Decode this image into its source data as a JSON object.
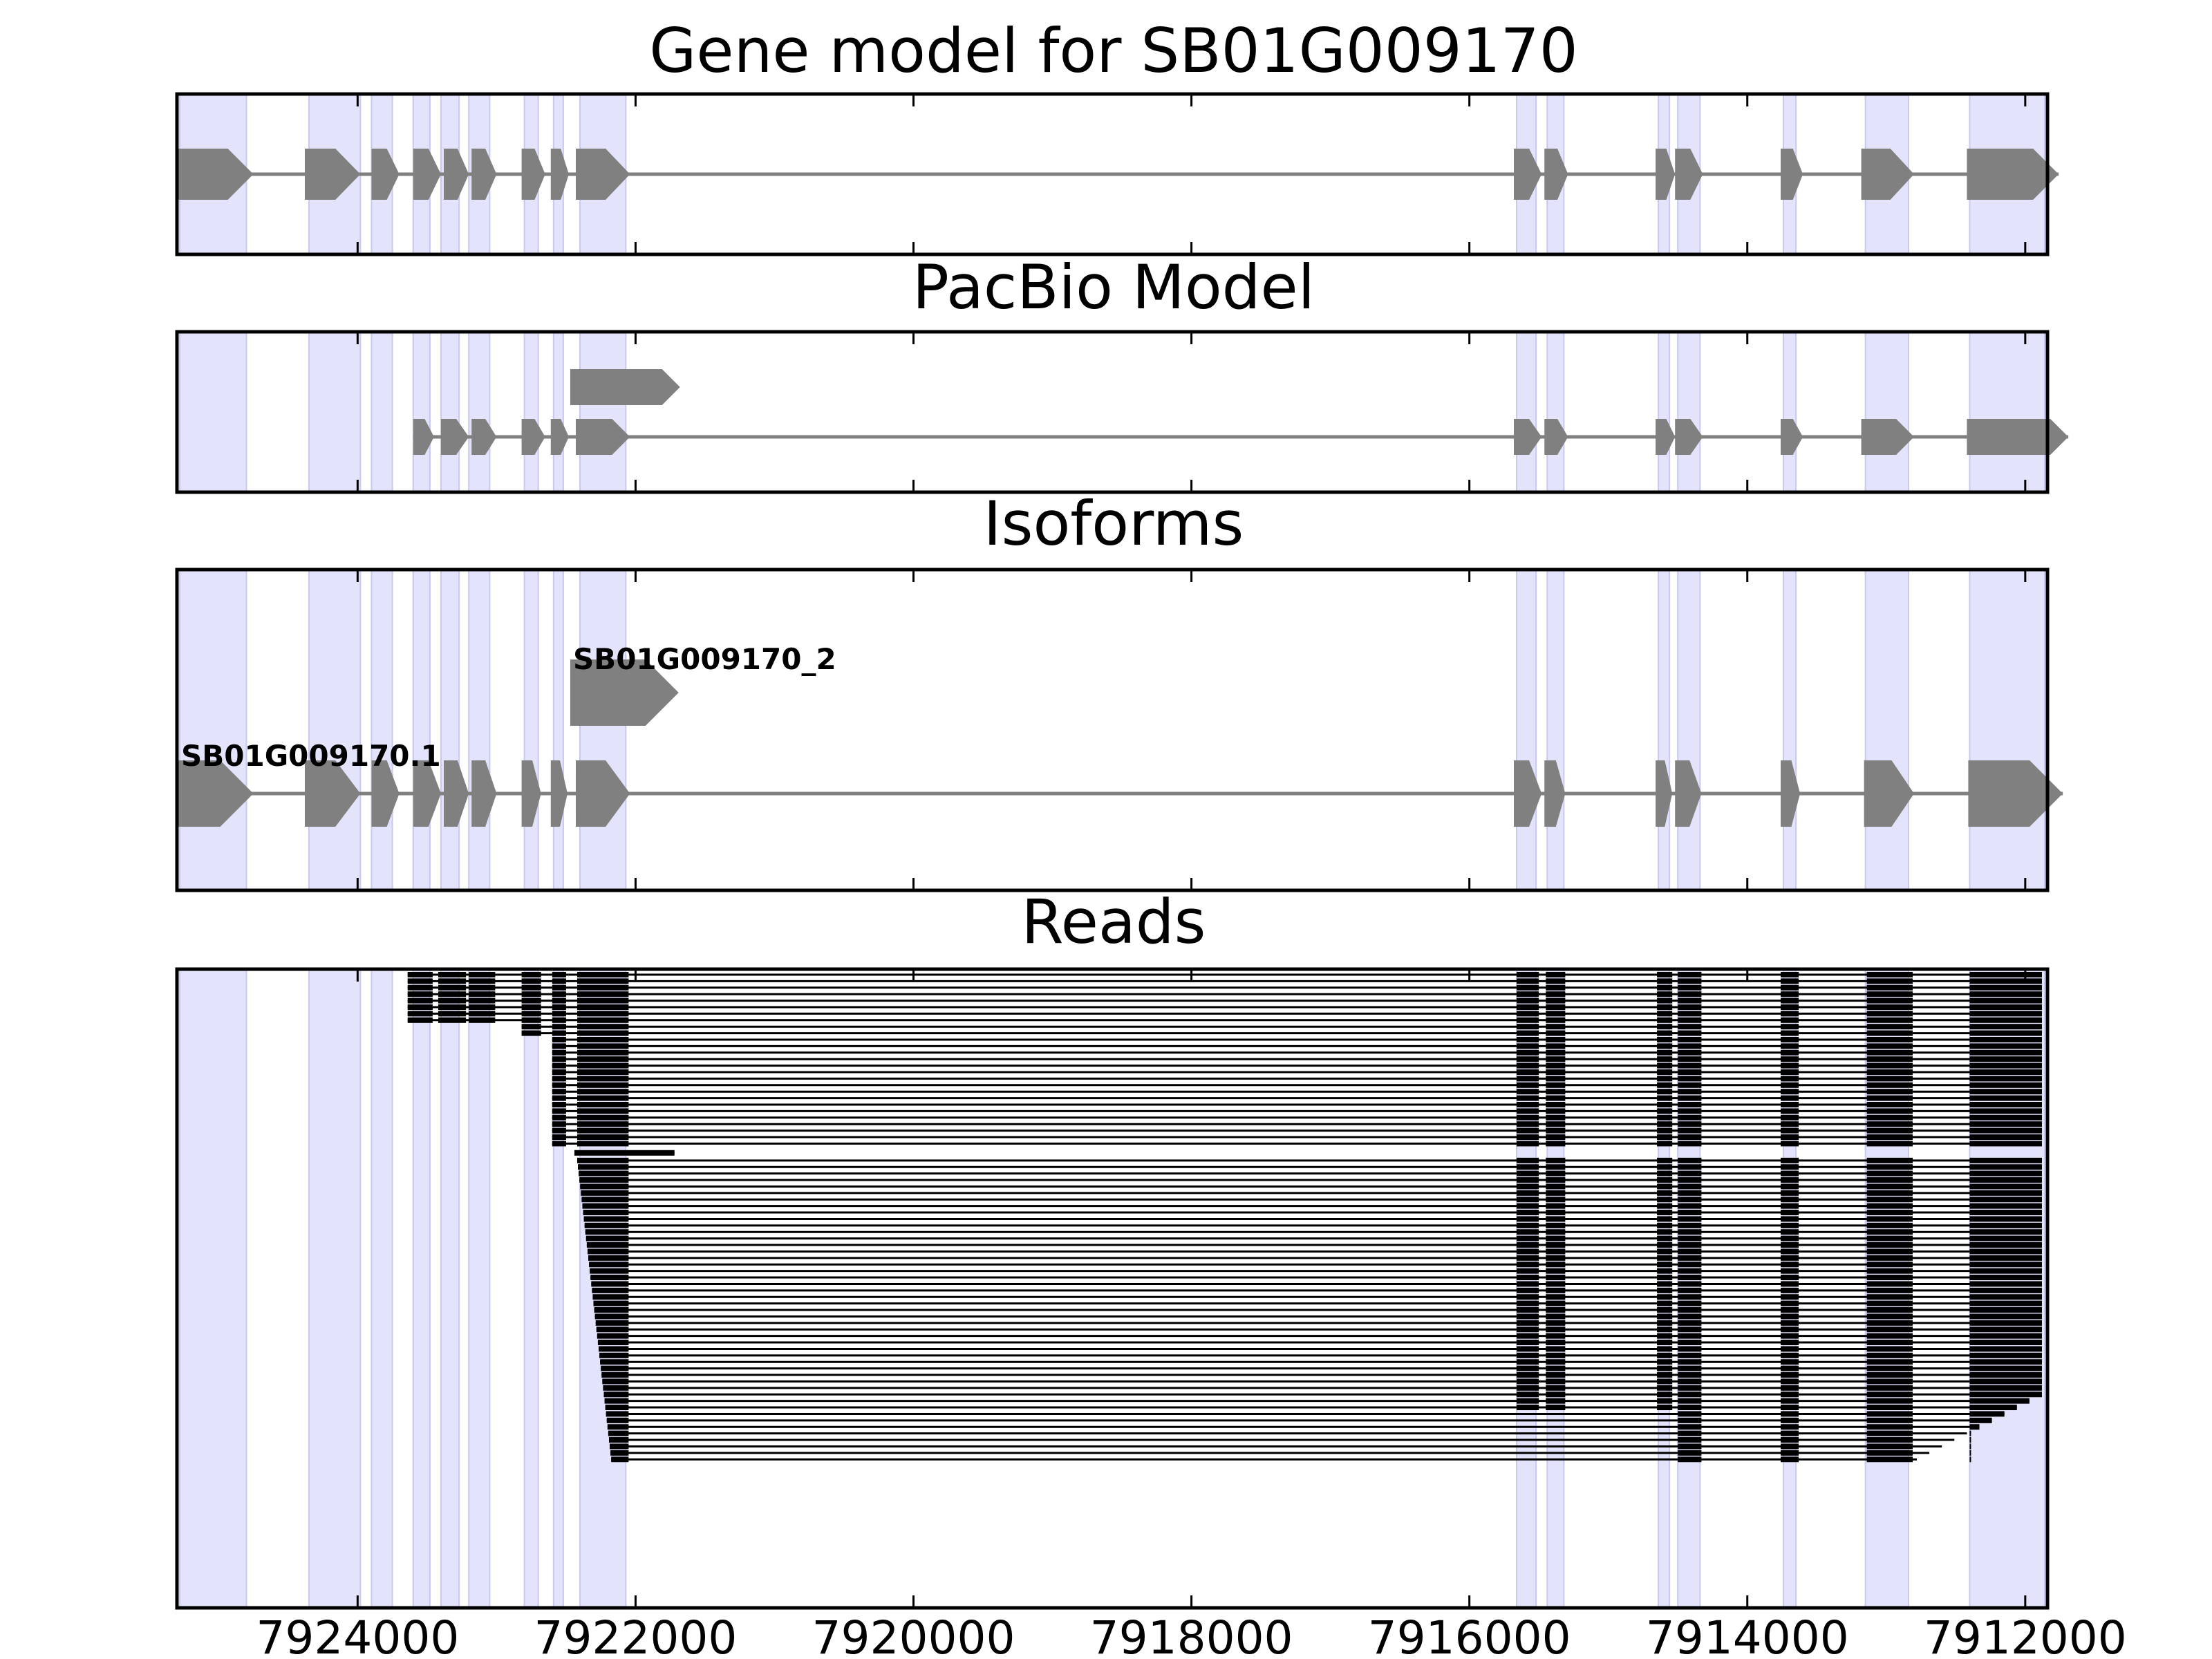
{
  "colors": {
    "exon_shade": "#e3e3fb",
    "exon_shade_edge": "#c9c9f0",
    "feature": "#808080",
    "read": "#000000",
    "frame": "#000000"
  },
  "panels": [
    {
      "id": "gene_model",
      "title": "Gene model for SB01G009170"
    },
    {
      "id": "pacbio",
      "title": "PacBio Model"
    },
    {
      "id": "isoforms",
      "title": "Isoforms"
    },
    {
      "id": "reads",
      "title": "Reads"
    }
  ],
  "chart_data": {
    "type": "gene_model_track",
    "xlim": [
      7925300,
      7911840
    ],
    "x_reversed": true,
    "x_ticks": [
      7924000,
      7922000,
      7920000,
      7918000,
      7916000,
      7914000,
      7912000
    ],
    "x_tick_labels": [
      "7924000",
      "7922000",
      "7920000",
      "7918000",
      "7916000",
      "7914000",
      "7912000"
    ],
    "exon_regions": [
      [
        7925280,
        7924800
      ],
      [
        7924350,
        7923980
      ],
      [
        7923900,
        7923750
      ],
      [
        7923600,
        7923480
      ],
      [
        7923400,
        7923270
      ],
      [
        7923200,
        7923050
      ],
      [
        7922800,
        7922700
      ],
      [
        7922590,
        7922520
      ],
      [
        7922400,
        7922070
      ],
      [
        7915660,
        7915520
      ],
      [
        7915440,
        7915320
      ],
      [
        7914640,
        7914560
      ],
      [
        7914500,
        7914340
      ],
      [
        7913740,
        7913650
      ],
      [
        7913150,
        7912840
      ],
      [
        7912400,
        7911860
      ]
    ],
    "gene_model": {
      "exons": [
        [
          7925300,
          7924750
        ],
        [
          7924380,
          7923980
        ],
        [
          7923900,
          7923700
        ],
        [
          7923600,
          7923400
        ],
        [
          7923380,
          7923200
        ],
        [
          7923180,
          7923000
        ],
        [
          7922820,
          7922650
        ],
        [
          7922610,
          7922480
        ],
        [
          7922430,
          7922040
        ],
        [
          7915680,
          7915480
        ],
        [
          7915460,
          7915290
        ],
        [
          7914660,
          7914520
        ],
        [
          7914520,
          7914320
        ],
        [
          7913760,
          7913600
        ],
        [
          7913180,
          7912800
        ],
        [
          7912420,
          7911760
        ]
      ]
    },
    "pacbio_model": {
      "transcripts": [
        {
          "exons": [
            [
              7922470,
              7921680
            ]
          ]
        },
        {
          "exons": [
            [
              7923600,
              7923450
            ],
            [
              7923400,
              7923200
            ],
            [
              7923180,
              7923000
            ],
            [
              7922820,
              7922650
            ],
            [
              7922610,
              7922480
            ],
            [
              7922430,
              7922040
            ],
            [
              7915680,
              7915480
            ],
            [
              7915460,
              7915290
            ],
            [
              7914660,
              7914520
            ],
            [
              7914520,
              7914320
            ],
            [
              7913760,
              7913600
            ],
            [
              7913180,
              7912800
            ],
            [
              7912420,
              7911690
            ]
          ]
        }
      ]
    },
    "isoforms": [
      {
        "name": "SB01G009170_2",
        "exons": [
          [
            7922470,
            7921690
          ]
        ]
      },
      {
        "name": "SB01G009170.1",
        "exons": [
          [
            7925300,
            7924750
          ],
          [
            7924380,
            7923980
          ],
          [
            7923900,
            7923700
          ],
          [
            7923600,
            7923400
          ],
          [
            7923380,
            7923200
          ],
          [
            7923180,
            7923000
          ],
          [
            7922820,
            7922680
          ],
          [
            7922610,
            7922490
          ],
          [
            7922430,
            7922040
          ],
          [
            7915680,
            7915480
          ],
          [
            7915460,
            7915310
          ],
          [
            7914660,
            7914540
          ],
          [
            7914520,
            7914330
          ],
          [
            7913760,
            7913620
          ],
          [
            7913160,
            7912800
          ],
          [
            7912410,
            7911730
          ]
        ]
      }
    ],
    "reads": {
      "group_a_count": 27,
      "group_b_count": 47,
      "blocks_a_early": [
        [
          7923640,
          7923460
        ],
        [
          7923420,
          7923220
        ],
        [
          7923200,
          7923010
        ]
      ],
      "blocks_a_mid": [
        [
          7922820,
          7922680
        ],
        [
          7922600,
          7922500
        ]
      ],
      "blocks_core": [
        [
          7922420,
          7922050
        ]
      ],
      "blocks_exon_mid": [
        [
          7915660,
          7915500
        ],
        [
          7915450,
          7915310
        ],
        [
          7914650,
          7914540
        ],
        [
          7914500,
          7914330
        ],
        [
          7913760,
          7913630
        ],
        [
          7913140,
          7912810
        ],
        [
          7912400,
          7911880
        ]
      ],
      "short_read": [
        [
          7922440,
          7921720
        ]
      ]
    }
  }
}
